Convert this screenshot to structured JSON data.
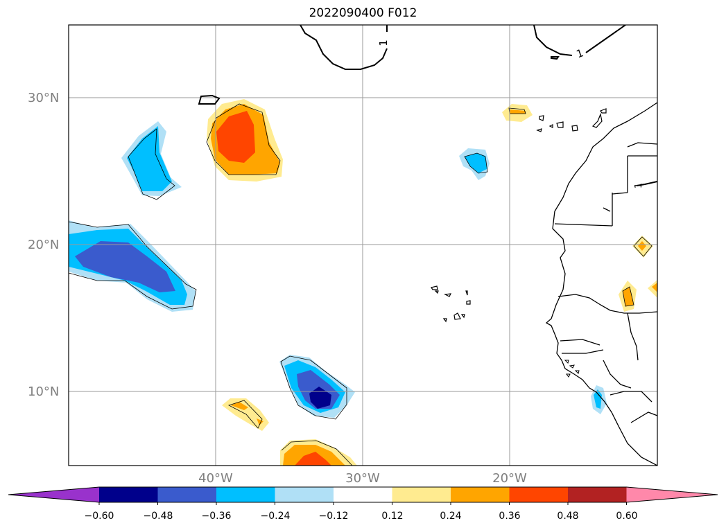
{
  "title": "2022090400 F012",
  "map": {
    "lat_labels": [
      "30°N",
      "20°N",
      "10°N"
    ],
    "lon_labels": [
      "40°W",
      "30°W",
      "20°W"
    ],
    "contour_labels": [
      "1",
      "1",
      "1"
    ]
  },
  "colorbar": {
    "ticks": [
      "−0.60",
      "−0.48",
      "−0.36",
      "−0.24",
      "−0.12",
      "0.12",
      "0.24",
      "0.36",
      "0.48",
      "0.60"
    ],
    "colors": {
      "under": "#9932cc",
      "bins": [
        "#00008b",
        "#3a5bcd",
        "#00bfff",
        "#b0e0f6",
        "#ffffff",
        "#ffeb90",
        "#ffa500",
        "#ff4500",
        "#b22222"
      ],
      "over": "#ff88aa"
    }
  }
}
